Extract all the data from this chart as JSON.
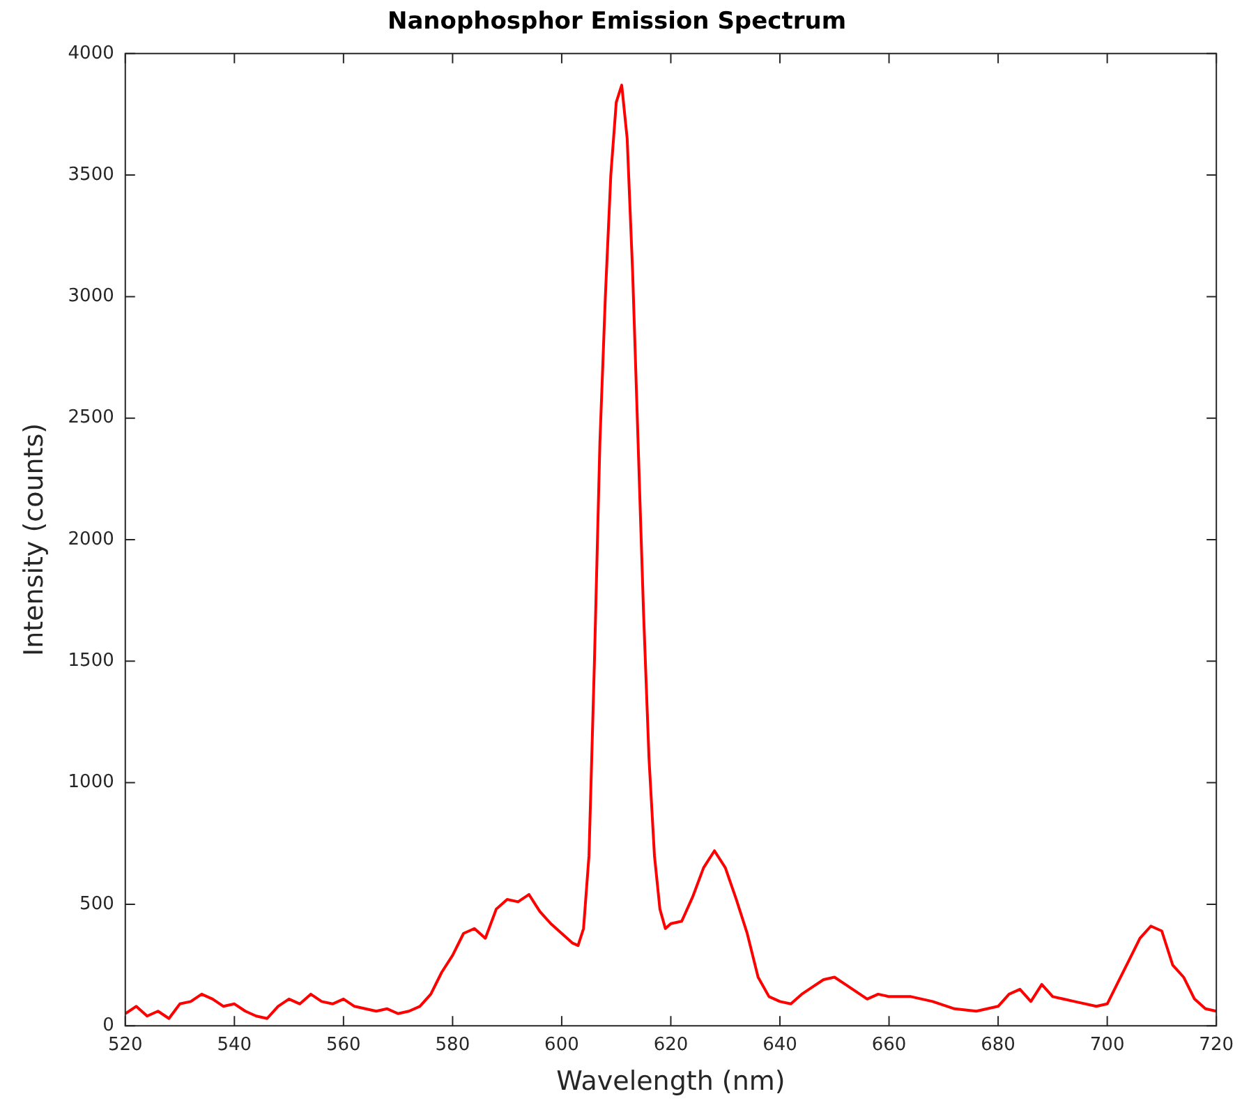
{
  "chart_data": {
    "type": "line",
    "title": "Nanophosphor Emission Spectrum",
    "xlabel": "Wavelength (nm)",
    "ylabel": "Intensity (counts)",
    "x": [
      520,
      522,
      524,
      526,
      528,
      530,
      532,
      534,
      536,
      538,
      540,
      542,
      544,
      546,
      548,
      550,
      552,
      554,
      556,
      558,
      560,
      562,
      564,
      566,
      568,
      570,
      572,
      574,
      576,
      578,
      580,
      582,
      584,
      586,
      588,
      590,
      592,
      594,
      596,
      598,
      600,
      602,
      603,
      604,
      605,
      606,
      607,
      608,
      609,
      610,
      611,
      612,
      613,
      614,
      615,
      616,
      617,
      618,
      619,
      620,
      622,
      624,
      626,
      628,
      630,
      632,
      634,
      636,
      638,
      640,
      642,
      644,
      646,
      648,
      650,
      652,
      654,
      656,
      658,
      660,
      664,
      668,
      672,
      676,
      680,
      682,
      684,
      686,
      688,
      690,
      694,
      698,
      700,
      702,
      704,
      706,
      708,
      710,
      712,
      714,
      716,
      718,
      720
    ],
    "series": [
      {
        "color": "#ff0000",
        "values": [
          50,
          80,
          40,
          60,
          30,
          90,
          100,
          130,
          110,
          80,
          90,
          60,
          40,
          30,
          80,
          110,
          90,
          130,
          100,
          90,
          110,
          80,
          70,
          60,
          70,
          50,
          60,
          80,
          130,
          220,
          290,
          380,
          400,
          360,
          480,
          520,
          510,
          540,
          470,
          420,
          380,
          340,
          330,
          400,
          700,
          1500,
          2400,
          3000,
          3500,
          3800,
          3870,
          3650,
          3100,
          2400,
          1700,
          1100,
          700,
          480,
          400,
          420,
          430,
          530,
          650,
          720,
          650,
          520,
          380,
          200,
          120,
          100,
          90,
          130,
          160,
          190,
          200,
          170,
          140,
          110,
          130,
          120,
          120,
          100,
          70,
          60,
          80,
          130,
          150,
          100,
          170,
          120,
          100,
          80,
          90,
          180,
          270,
          360,
          410,
          390,
          250,
          200,
          110,
          70,
          60
        ]
      }
    ],
    "xlim": [
      520,
      720
    ],
    "xticks": [
      520,
      540,
      560,
      580,
      600,
      620,
      640,
      660,
      680,
      700,
      720
    ],
    "ylim": [
      0,
      4000
    ],
    "yticks": [
      0,
      500,
      1000,
      1500,
      2000,
      2500,
      3000,
      3500,
      4000
    ],
    "grid": false,
    "legend": false,
    "marker": "none",
    "line_style": "solid"
  }
}
